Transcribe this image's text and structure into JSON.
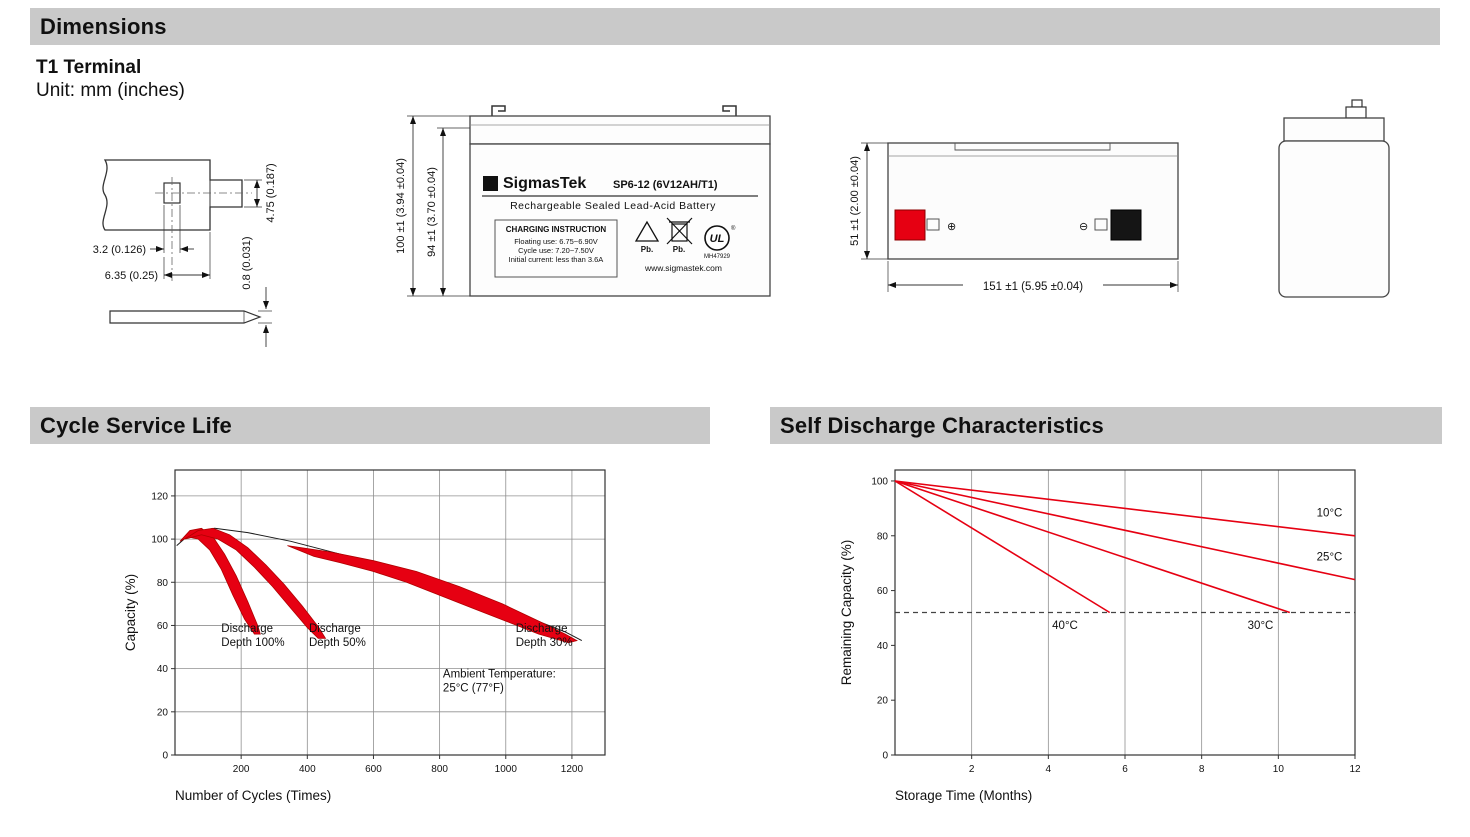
{
  "sections": {
    "dimensions": {
      "title": "Dimensions",
      "subtitle": "T1 Terminal",
      "unit_note": "Unit: mm (inches)"
    },
    "cycle_life": {
      "title": "Cycle Service Life"
    },
    "self_discharge": {
      "title": "Self Discharge Characteristics"
    }
  },
  "colors": {
    "accent_red": "#e60012",
    "header_bar": "#c9c9c9"
  },
  "terminal_drawing": {
    "dim_hole_width": "3.2 (0.126)",
    "dim_blade_width": "6.35 (0.25)",
    "dim_tab_height": "4.75 (0.187)",
    "dim_blade_thickness": "0.8 (0.031)"
  },
  "front_view": {
    "dim_total_height": "100 ±1 (3.94 ±0.04)",
    "dim_case_height": "94 ±1 (3.70 ±0.04)",
    "logo_glyph": "Σ",
    "brand": "SigmasTek",
    "model": "SP6-12 (6V12AH/T1)",
    "subtitle": "Rechargeable Sealed Lead-Acid Battery",
    "charging_box": {
      "title": "CHARGING INSTRUCTION",
      "line1": "Floating use: 6.75~6.90V",
      "line2": "Cycle use: 7.20~7.50V",
      "line3": "Initial current: less than 3.6A"
    },
    "pb_recycle": "Pb.",
    "pb_disposal": "Pb.",
    "ul_glyph": "UL",
    "ul_code": "MH47929",
    "website": "www.sigmastek.com"
  },
  "side_view": {
    "dim_height": "51 ±1 (2.00 ±0.04)",
    "dim_length": "151 ±1 (5.95 ±0.04)",
    "positive_symbol": "⊕",
    "negative_symbol": "⊖"
  },
  "chart_data": [
    {
      "type": "area",
      "title": "Cycle Service Life",
      "xlabel": "Number of Cycles (Times)",
      "ylabel": "Capacity (%)",
      "xlim": [
        0,
        1300
      ],
      "ylim": [
        0,
        132
      ],
      "xticks": [
        200,
        400,
        600,
        800,
        1000,
        1200
      ],
      "yticks": [
        0,
        20,
        40,
        60,
        80,
        100,
        120
      ],
      "grid": {
        "vertical": true,
        "horizontal": true
      },
      "series": [
        {
          "name": "envelope",
          "type": "line",
          "color": "#1a1a1a",
          "width": 1,
          "points": [
            [
              5,
              97
            ],
            [
              50,
              103
            ],
            [
              120,
              105
            ],
            [
              220,
              103
            ],
            [
              350,
              99
            ],
            [
              500,
              93
            ],
            [
              650,
              87
            ],
            [
              800,
              80
            ],
            [
              950,
              71
            ],
            [
              1080,
              63
            ],
            [
              1180,
              57
            ],
            [
              1230,
              53
            ]
          ]
        },
        {
          "name": "discharge-depth-100",
          "type": "band",
          "color": "#e60012",
          "outline": "#b00000",
          "points": [
            [
              15,
              99
            ],
            [
              45,
              104
            ],
            [
              80,
              105
            ],
            [
              115,
              101
            ],
            [
              150,
              93
            ],
            [
              185,
              83
            ],
            [
              220,
              71
            ],
            [
              250,
              60
            ],
            [
              258,
              56
            ],
            [
              240,
              56
            ],
            [
              210,
              63
            ],
            [
              175,
              74
            ],
            [
              140,
              86
            ],
            [
              105,
              95
            ],
            [
              70,
              100
            ],
            [
              40,
              101
            ]
          ]
        },
        {
          "name": "discharge-depth-50",
          "type": "band",
          "color": "#e60012",
          "outline": "#b00000",
          "points": [
            [
              30,
              100
            ],
            [
              70,
              104
            ],
            [
              115,
              105
            ],
            [
              165,
              102
            ],
            [
              220,
              96
            ],
            [
              275,
              88
            ],
            [
              330,
              79
            ],
            [
              385,
              69
            ],
            [
              435,
              59
            ],
            [
              455,
              54
            ],
            [
              433,
              54
            ],
            [
              400,
              59
            ],
            [
              350,
              68
            ],
            [
              295,
              78
            ],
            [
              240,
              87
            ],
            [
              185,
              95
            ],
            [
              130,
              100
            ],
            [
              80,
              102
            ]
          ]
        },
        {
          "name": "discharge-depth-30",
          "type": "band",
          "color": "#e60012",
          "outline": "#b00000",
          "points": [
            [
              340,
              97
            ],
            [
              470,
              94
            ],
            [
              600,
              90
            ],
            [
              730,
              85
            ],
            [
              860,
              78
            ],
            [
              990,
              70
            ],
            [
              1100,
              62
            ],
            [
              1180,
              56
            ],
            [
              1215,
              53
            ],
            [
              1190,
              52
            ],
            [
              1100,
              56
            ],
            [
              1000,
              62
            ],
            [
              900,
              68
            ],
            [
              800,
              74
            ],
            [
              700,
              80
            ],
            [
              600,
              85
            ],
            [
              500,
              89
            ],
            [
              420,
              92
            ]
          ]
        }
      ],
      "annotations": [
        {
          "lines": [
            "Discharge",
            "Depth 100%"
          ],
          "x": 140,
          "y": 57
        },
        {
          "lines": [
            "Discharge",
            "Depth 50%"
          ],
          "x": 405,
          "y": 57
        },
        {
          "lines": [
            "Discharge",
            "Depth 30%"
          ],
          "x": 1030,
          "y": 57
        },
        {
          "lines": [
            "Ambient Temperature:",
            "25°C (77°F)"
          ],
          "x": 810,
          "y": 36
        }
      ]
    },
    {
      "type": "line",
      "title": "Self Discharge Characteristics",
      "xlabel": "Storage Time (Months)",
      "ylabel": "Remaining Capacity (%)",
      "xlim": [
        0,
        12
      ],
      "ylim": [
        0,
        104
      ],
      "xticks": [
        2,
        4,
        6,
        8,
        10,
        12
      ],
      "yticks": [
        0,
        20,
        40,
        60,
        80,
        100
      ],
      "grid": {
        "vertical": true,
        "horizontal": false
      },
      "series": [
        {
          "name": "10C",
          "type": "line",
          "color": "#e60012",
          "width": 1.6,
          "points": [
            [
              0,
              100
            ],
            [
              12,
              80
            ]
          ]
        },
        {
          "name": "25C",
          "type": "line",
          "color": "#e60012",
          "width": 1.6,
          "points": [
            [
              0,
              100
            ],
            [
              12,
              64
            ]
          ]
        },
        {
          "name": "30C",
          "type": "line",
          "color": "#e60012",
          "width": 1.6,
          "points": [
            [
              0,
              100
            ],
            [
              10.3,
              52
            ]
          ]
        },
        {
          "name": "40C",
          "type": "line",
          "color": "#e60012",
          "width": 1.6,
          "points": [
            [
              0,
              100
            ],
            [
              5.6,
              52
            ]
          ]
        },
        {
          "name": "capacity-threshold",
          "type": "line",
          "color": "#444444",
          "width": 1.2,
          "dash": "5,4",
          "points": [
            [
              0,
              52
            ],
            [
              12,
              52
            ]
          ]
        }
      ],
      "annotations": [
        {
          "lines": [
            "10°C"
          ],
          "x": 11.0,
          "y": 87
        },
        {
          "lines": [
            "25°C"
          ],
          "x": 11.0,
          "y": 71
        },
        {
          "lines": [
            "40°C"
          ],
          "x": 4.1,
          "y": 46
        },
        {
          "lines": [
            "30°C"
          ],
          "x": 9.2,
          "y": 46
        }
      ]
    }
  ]
}
